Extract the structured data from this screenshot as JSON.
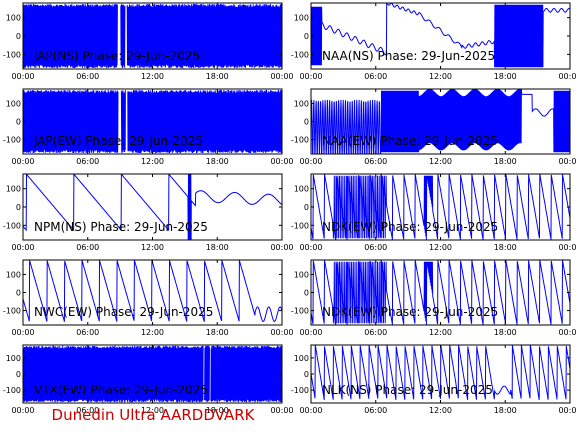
{
  "footer": {
    "text": "Dunedin Ultra AARDDVARK",
    "color": "#cc0000"
  },
  "style": {
    "trace_color": "#0000ff",
    "axis_color": "#000000"
  },
  "chart_data": [
    {
      "type": "line",
      "title": "JAP(NS) Phase: 29-Jun-2025",
      "x_ticks": [
        "00:00",
        "06:00",
        "12:00",
        "18:00",
        "00:00"
      ],
      "y_ticks": [
        100,
        0,
        -100
      ],
      "ylim": [
        -180,
        180
      ],
      "xlim_hours": [
        0,
        24
      ],
      "pattern": "dense",
      "gaps_hours": [
        [
          8.75,
          9.05
        ],
        [
          9.45,
          9.65
        ]
      ]
    },
    {
      "type": "line",
      "title": "NAA(NS) Phase: 29-Jun-2025",
      "x_ticks": [
        "00:00",
        "06:00",
        "12:00",
        "18:00",
        "00:00"
      ],
      "y_ticks": [
        100,
        0,
        -100
      ],
      "ylim": [
        -180,
        180
      ],
      "xlim_hours": [
        0,
        24
      ],
      "pattern": "naa_ns"
    },
    {
      "type": "line",
      "title": "JAP(EW) Phase: 29-Jun-2025",
      "x_ticks": [
        "00:00",
        "06:00",
        "12:00",
        "18:00",
        "00:00"
      ],
      "y_ticks": [
        100,
        0,
        -100
      ],
      "ylim": [
        -180,
        180
      ],
      "xlim_hours": [
        0,
        24
      ],
      "pattern": "dense",
      "gaps_hours": [
        [
          8.8,
          9.1
        ],
        [
          9.5,
          9.7
        ]
      ]
    },
    {
      "type": "line",
      "title": "NAA(EW) Phase: 29-Jun-2025",
      "x_ticks": [
        "00:00",
        "06:00",
        "12:00",
        "18:00",
        "00:00"
      ],
      "y_ticks": [
        100,
        0,
        -100
      ],
      "ylim": [
        -180,
        180
      ],
      "xlim_hours": [
        0,
        24
      ],
      "pattern": "naa_ew"
    },
    {
      "type": "line",
      "title": "NPM(NS) Phase: 29-Jun-2025",
      "x_ticks": [
        "00:00",
        "06:00",
        "12:00",
        "18:00",
        "00:00"
      ],
      "y_ticks": [
        100,
        0,
        -100
      ],
      "ylim": [
        -180,
        180
      ],
      "xlim_hours": [
        0,
        24
      ],
      "pattern": "npm_ns"
    },
    {
      "type": "line",
      "title": "NDK(EW) Phase: 29-Jun-2025",
      "x_ticks": [
        "00:00",
        "06:00",
        "12:00",
        "18:00",
        "00:00"
      ],
      "y_ticks": [
        100,
        0,
        -100
      ],
      "ylim": [
        -180,
        180
      ],
      "xlim_hours": [
        0,
        24
      ],
      "pattern": "ndk"
    },
    {
      "type": "line",
      "title": "NWC(EW) Phase: 29-Jun-2025",
      "x_ticks": [
        "00:00",
        "06:00",
        "12:00",
        "18:00",
        "00:00"
      ],
      "y_ticks": [
        100,
        0,
        -100
      ],
      "ylim": [
        -180,
        180
      ],
      "xlim_hours": [
        0,
        24
      ],
      "pattern": "nwc"
    },
    {
      "type": "line",
      "title": "NDK(EW) Phase: 29-Jun-2025",
      "x_ticks": [
        "00:00",
        "06:00",
        "12:00",
        "18:00",
        "00:00"
      ],
      "y_ticks": [
        100,
        0,
        -100
      ],
      "ylim": [
        -180,
        180
      ],
      "xlim_hours": [
        0,
        24
      ],
      "pattern": "ndk"
    },
    {
      "type": "line",
      "title": "VTX(EW) Phase: 29-Jun-2025",
      "x_ticks": [
        "00:00",
        "06:00",
        "12:00",
        "18:00",
        "00:00"
      ],
      "y_ticks": [
        100,
        0,
        -100
      ],
      "ylim": [
        -180,
        180
      ],
      "xlim_hours": [
        0,
        24
      ],
      "pattern": "dense",
      "gaps_hours": [
        [
          16.7,
          16.8
        ],
        [
          17.3,
          17.4
        ]
      ]
    },
    {
      "type": "line",
      "title": "NLK(NS) Phase: 29-Jun-2025",
      "x_ticks": [
        "00:00",
        "06:00",
        "12:00",
        "18:00",
        "00:00"
      ],
      "y_ticks": [
        100,
        0,
        -100
      ],
      "ylim": [
        -180,
        180
      ],
      "xlim_hours": [
        0,
        24
      ],
      "pattern": "nlk"
    }
  ]
}
